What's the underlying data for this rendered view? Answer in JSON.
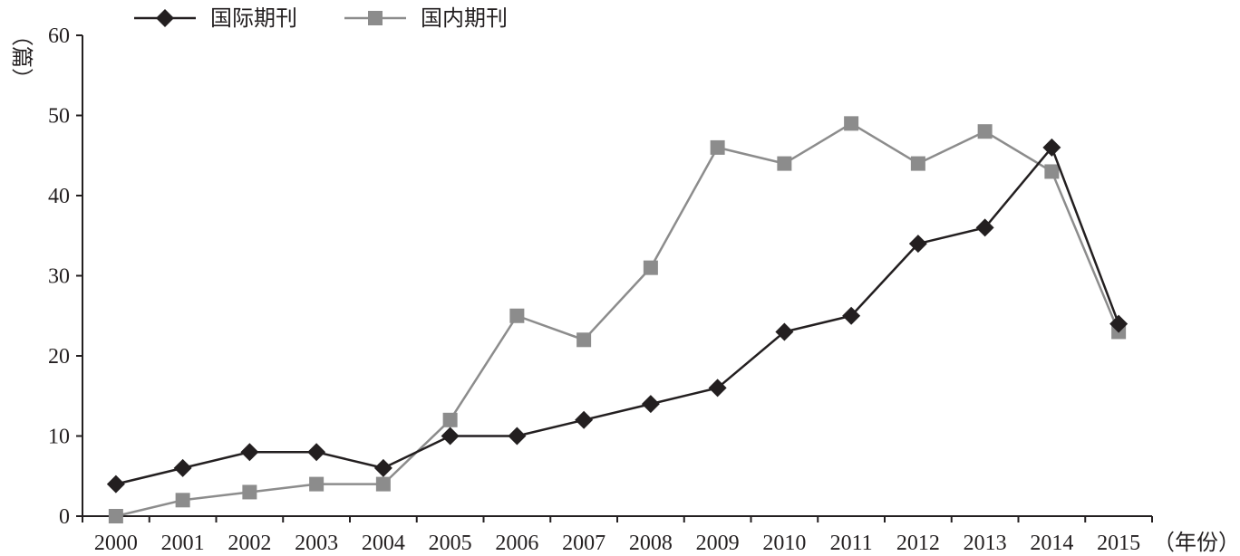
{
  "chart_data": {
    "type": "line",
    "categories": [
      "2000",
      "2001",
      "2002",
      "2003",
      "2004",
      "2005",
      "2006",
      "2007",
      "2008",
      "2009",
      "2010",
      "2011",
      "2012",
      "2013",
      "2014",
      "2015"
    ],
    "x": [
      2000,
      2001,
      2002,
      2003,
      2004,
      2005,
      2006,
      2007,
      2008,
      2009,
      2010,
      2011,
      2012,
      2013,
      2014,
      2015
    ],
    "series": [
      {
        "name": "国际期刊",
        "marker": "diamond",
        "color": "#231f20",
        "values": [
          4,
          6,
          8,
          8,
          6,
          10,
          10,
          12,
          14,
          16,
          23,
          25,
          34,
          36,
          46,
          24
        ]
      },
      {
        "name": "国内期刊",
        "marker": "square",
        "color": "#8c8c8c",
        "values": [
          0,
          2,
          3,
          4,
          4,
          12,
          25,
          22,
          31,
          46,
          44,
          49,
          44,
          48,
          43,
          23
        ]
      }
    ],
    "ylim": [
      0,
      60
    ],
    "yticks": [
      "0",
      "10",
      "20",
      "30",
      "40",
      "50",
      "60"
    ],
    "ylabel": "（篇）",
    "xlabel": "（年份）",
    "title": "",
    "legend": "top-left",
    "grid": false
  }
}
